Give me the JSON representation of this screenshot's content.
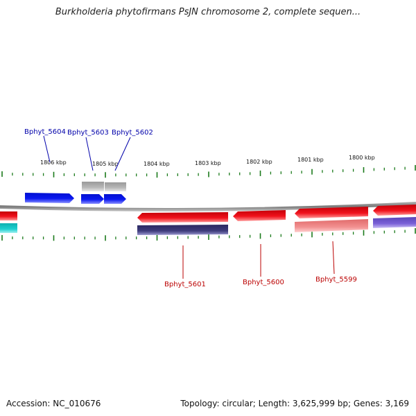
{
  "map": {
    "title": "Burkholderia phytofirmans PsJN chromosome 2, complete sequen...",
    "accession_text": "Accession: NC_010676",
    "info_text": "Topology: circular; Length: 3,625,999 bp; Genes: 3,169"
  },
  "colors": {
    "forward_gene": "#0a14e6",
    "reverse_gene": "#e8101a",
    "reverse_gene_light": "#f08a8a",
    "cds_dark": "#3c3a78",
    "cds_purple": "#7b62d0",
    "cds_grey": "#b4b4b4",
    "cyan": "#19c8c8",
    "backbone": "#888888",
    "tick": "#1a7a1a",
    "forward_label": "#0000aa",
    "reverse_label": "#bb0000"
  },
  "ticks": [
    {
      "label": "1806 kbp"
    },
    {
      "label": "1805 kbp"
    },
    {
      "label": "1804 kbp"
    },
    {
      "label": "1803 kbp"
    },
    {
      "label": "1802 kbp"
    },
    {
      "label": "1801 kbp"
    },
    {
      "label": "1800 kbp"
    }
  ],
  "genes": [
    {
      "name": "Bphyt_5604",
      "strand": "forward"
    },
    {
      "name": "Bphyt_5603",
      "strand": "forward"
    },
    {
      "name": "Bphyt_5602",
      "strand": "forward"
    },
    {
      "name": "Bphyt_5601",
      "strand": "reverse"
    },
    {
      "name": "Bphyt_5600",
      "strand": "reverse"
    },
    {
      "name": "Bphyt_5599",
      "strand": "reverse"
    }
  ]
}
